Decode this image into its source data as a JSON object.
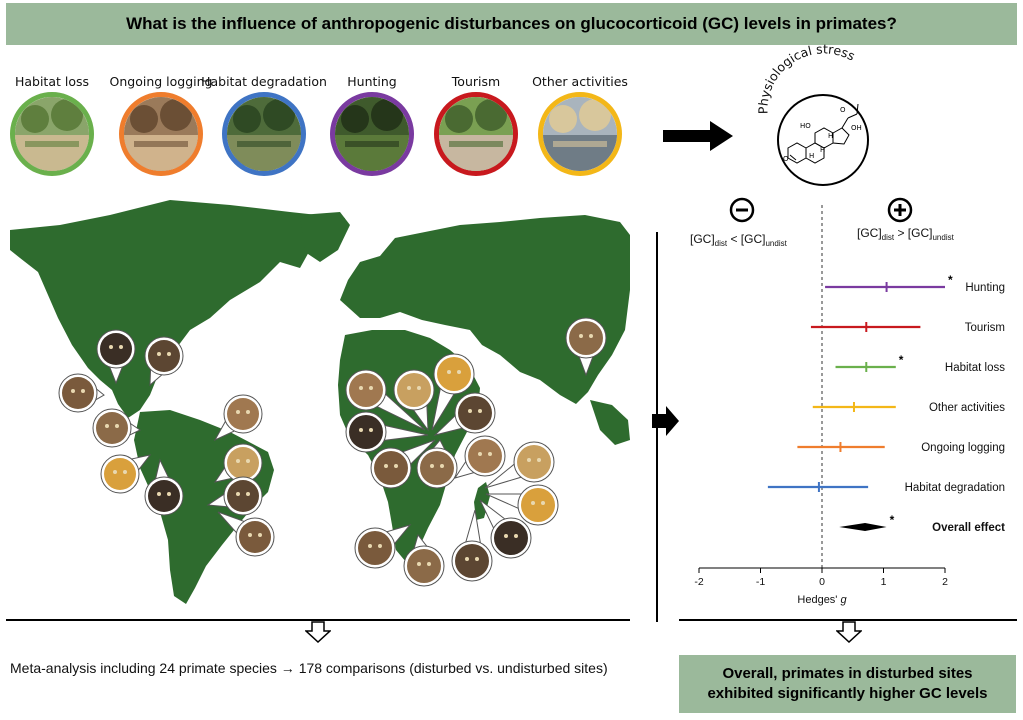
{
  "title": "What is the influence of anthropogenic disturbances on glucocorticoid (GC) levels in primates?",
  "disturbances": [
    {
      "label": "Habitat loss",
      "icon": "habitat-loss-photo",
      "ring_color": "#6ab04c"
    },
    {
      "label": "Ongoing logging",
      "icon": "logging-photo",
      "ring_color": "#ef7d2d"
    },
    {
      "label": "Habitat degradation",
      "icon": "habitat-degradation-photo",
      "ring_color": "#3f74c4"
    },
    {
      "label": "Hunting",
      "icon": "hunting-photo",
      "ring_color": "#7a3aa0"
    },
    {
      "label": "Tourism",
      "icon": "tourism-photo",
      "ring_color": "#c8191e"
    },
    {
      "label": "Other activities",
      "icon": "other-activities-photo",
      "ring_color": "#f3b718"
    }
  ],
  "stress": {
    "label": "Physiological stress",
    "molecule_labels": [
      "HO",
      "O",
      "OH",
      "H",
      "H",
      "H",
      "O"
    ]
  },
  "forest": {
    "minus_sign": "−",
    "plus_sign": "+",
    "left_condition": {
      "base": "[GC]",
      "sub1": "dist",
      "mid": " < [GC]",
      "sub2": "undist"
    },
    "right_condition": {
      "base": "[GC]",
      "sub1": "dist",
      "mid": " > [GC]",
      "sub2": "undist"
    },
    "xlabel": "Hedges' g",
    "significance_mark": "*"
  },
  "chart_data": {
    "type": "forest",
    "xlabel": "Hedges' g",
    "xlim": [
      -2,
      2
    ],
    "xticks": [
      -2,
      -1,
      0,
      1,
      2
    ],
    "reference_line": 0,
    "rows": [
      {
        "label": "Hunting",
        "estimate": 1.05,
        "ci_low": 0.05,
        "ci_high": 2.0,
        "significant": true,
        "color": "#7a3aa0",
        "bold": false
      },
      {
        "label": "Tourism",
        "estimate": 0.72,
        "ci_low": -0.18,
        "ci_high": 1.6,
        "significant": false,
        "color": "#c8191e",
        "bold": false
      },
      {
        "label": "Habitat loss",
        "estimate": 0.72,
        "ci_low": 0.22,
        "ci_high": 1.2,
        "significant": true,
        "color": "#6ab04c",
        "bold": false
      },
      {
        "label": "Other activities",
        "estimate": 0.52,
        "ci_low": -0.15,
        "ci_high": 1.2,
        "significant": false,
        "color": "#f3b718",
        "bold": false
      },
      {
        "label": "Ongoing logging",
        "estimate": 0.3,
        "ci_low": -0.4,
        "ci_high": 1.02,
        "significant": false,
        "color": "#ef7d2d",
        "bold": false
      },
      {
        "label": "Habitat degradation",
        "estimate": -0.05,
        "ci_low": -0.88,
        "ci_high": 0.75,
        "significant": false,
        "color": "#3f74c4",
        "bold": false
      },
      {
        "label": "Overall effect",
        "estimate": 0.7,
        "ci_low": 0.28,
        "ci_high": 1.05,
        "significant": true,
        "color": "#000000",
        "bold": true,
        "diamond": true
      }
    ]
  },
  "summary": "Meta-analysis including 24 primate species → 178 comparisons (disturbed vs. undisturbed sites)",
  "conclusion": {
    "line1": "Overall, primates in disturbed sites",
    "line2": "exhibited significantly higher GC levels"
  },
  "colors": {
    "banner": "#9bb99b",
    "land": "#2e6b2e"
  }
}
